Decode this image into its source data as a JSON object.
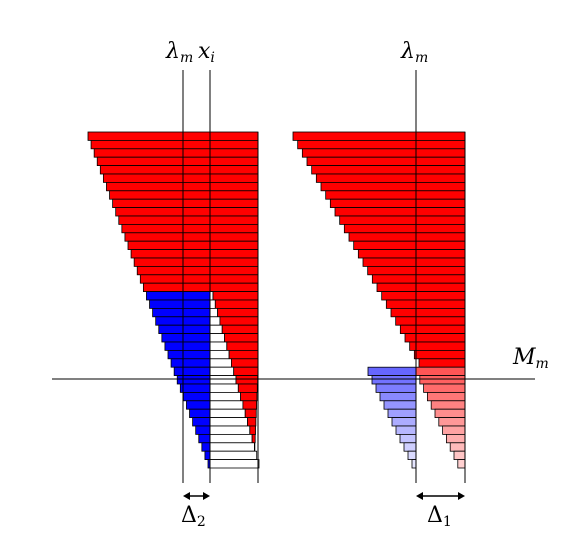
{
  "labels": {
    "lambda_m_left": "λ",
    "lambda_m_left_sub": "m",
    "x_i": "x",
    "x_i_sub": "i",
    "lambda_m_right": "λ",
    "lambda_m_right_sub": "m",
    "M_m": "M",
    "M_m_sub": "m",
    "delta_2": "Δ",
    "delta_2_sub": "2",
    "delta_1": "Δ",
    "delta_1_sub": "1"
  },
  "colors": {
    "red": "#ff0000",
    "blue": "#0000ff",
    "white": "#ffffff",
    "line": "#000000"
  },
  "bars": {
    "count": 40,
    "upper_count": 28
  }
}
